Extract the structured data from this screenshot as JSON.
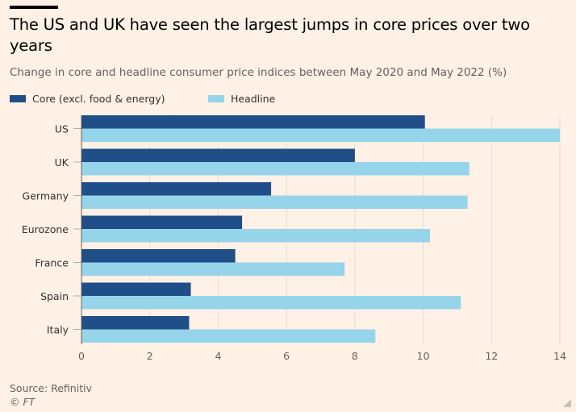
{
  "title": "The US and UK have seen the largest jumps in core prices over two years",
  "subtitle": "Change in core and headline consumer price indices between May 2020 and May 2022 (%)",
  "source": "Source: Refinitiv",
  "copyright": "© FT",
  "colors": {
    "background": "#fff1e5",
    "core": "#1f4e89",
    "headline": "#96d4ea",
    "grid": "#e6d9ce",
    "axis": "#66605c"
  },
  "chart_data": {
    "type": "bar",
    "orientation": "horizontal",
    "categories": [
      "US",
      "UK",
      "Germany",
      "Eurozone",
      "France",
      "Spain",
      "Italy"
    ],
    "series": [
      {
        "name": "Core (excl. food & energy)",
        "values": [
          10.05,
          8.0,
          5.55,
          4.7,
          4.5,
          3.2,
          3.15
        ]
      },
      {
        "name": "Headline",
        "values": [
          14.0,
          11.35,
          11.3,
          10.2,
          7.7,
          11.1,
          8.6
        ]
      }
    ],
    "xlim": [
      0,
      14
    ],
    "xticks": [
      "0",
      "2",
      "4",
      "6",
      "8",
      "10",
      "12",
      "14"
    ],
    "grid": "vertical",
    "legend": "top-left"
  }
}
